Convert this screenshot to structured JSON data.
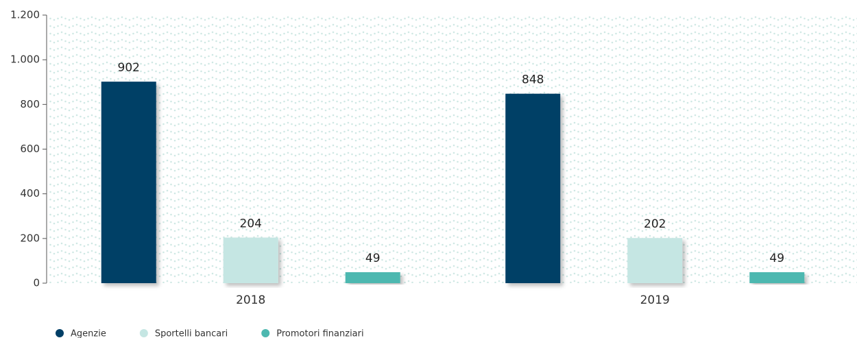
{
  "chart_data": {
    "type": "bar",
    "categories": [
      "2018",
      "2019"
    ],
    "series": [
      {
        "name": "Agenzie",
        "color": "#003f66",
        "values": [
          902,
          848
        ]
      },
      {
        "name": "Sportelli bancari",
        "color": "#c5e6e3",
        "values": [
          204,
          202
        ]
      },
      {
        "name": "Promotori finanziari",
        "color": "#4db8b0",
        "values": [
          49,
          49
        ]
      }
    ],
    "ylim": [
      0,
      1200
    ],
    "yticks": [
      0,
      200,
      400,
      600,
      800,
      {
        "value": 1000,
        "label": "1.000"
      },
      {
        "value": 1200,
        "label": "1.200"
      }
    ],
    "legend": "bottom-left"
  }
}
